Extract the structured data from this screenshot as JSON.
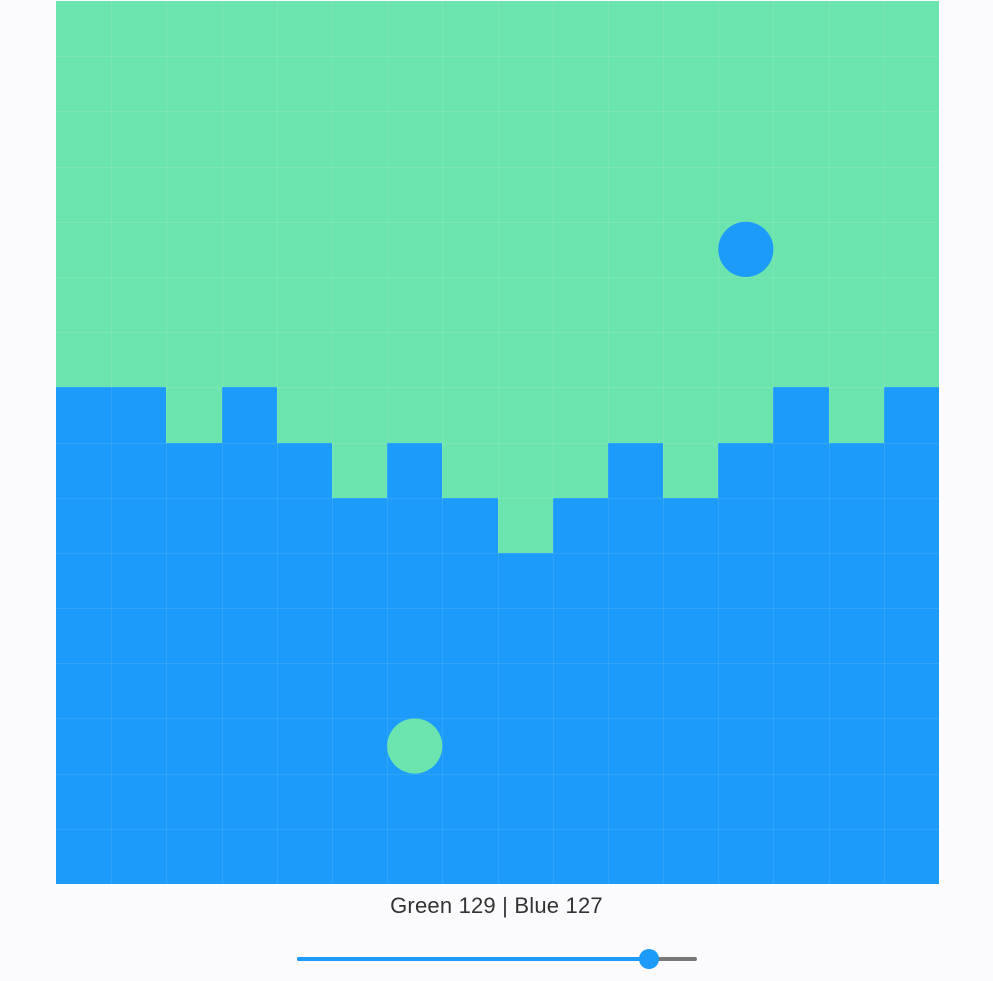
{
  "colors": {
    "green": "#6ce4ad",
    "blue": "#1c9bfb",
    "slider_inactive": "#777777",
    "background": "#fbfbfe"
  },
  "grid": {
    "columns": 16,
    "rows": 16,
    "blue_starts_at_row": [
      7,
      7,
      8,
      7,
      8,
      9,
      8,
      9,
      10,
      9,
      8,
      9,
      8,
      7,
      8,
      7
    ]
  },
  "balls": [
    {
      "name": "blue-ball",
      "color": "blue",
      "col": 12,
      "row": 4
    },
    {
      "name": "green-ball",
      "color": "green",
      "col": 6,
      "row": 13
    }
  ],
  "score": {
    "text": "Green 129 | Blue 127",
    "green": 129,
    "blue": 127
  },
  "slider": {
    "value": 0.88
  }
}
